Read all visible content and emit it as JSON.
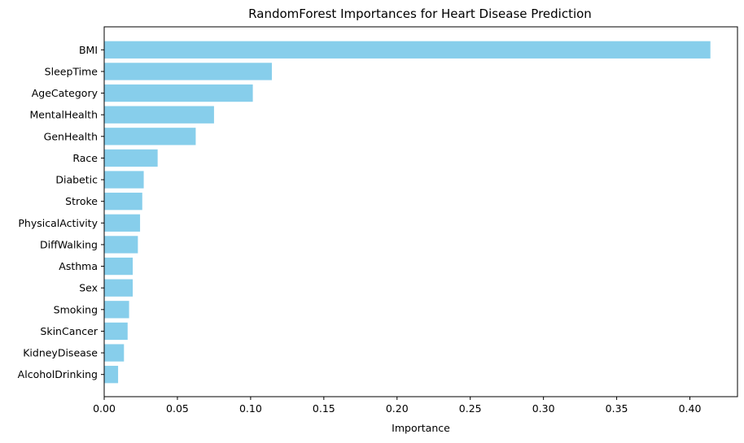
{
  "chart_data": {
    "type": "bar",
    "orientation": "horizontal",
    "title": "RandomForest Importances for Heart Disease Prediction",
    "xlabel": "Importance",
    "ylabel": "",
    "xlim": [
      0,
      0.4325
    ],
    "xticks": [
      "0.00",
      "0.05",
      "0.10",
      "0.15",
      "0.20",
      "0.25",
      "0.30",
      "0.35",
      "0.40"
    ],
    "grid": false,
    "bar_color": "#87ceeb",
    "categories": [
      "BMI",
      "SleepTime",
      "AgeCategory",
      "MentalHealth",
      "GenHealth",
      "Race",
      "Diabetic",
      "Stroke",
      "PhysicalActivity",
      "DiffWalking",
      "Asthma",
      "Sex",
      "Smoking",
      "SkinCancer",
      "KidneyDisease",
      "AlcoholDrinking"
    ],
    "values": [
      0.414,
      0.1145,
      0.1015,
      0.075,
      0.0625,
      0.0365,
      0.027,
      0.026,
      0.0245,
      0.023,
      0.0195,
      0.0195,
      0.017,
      0.016,
      0.0135,
      0.0095
    ]
  }
}
